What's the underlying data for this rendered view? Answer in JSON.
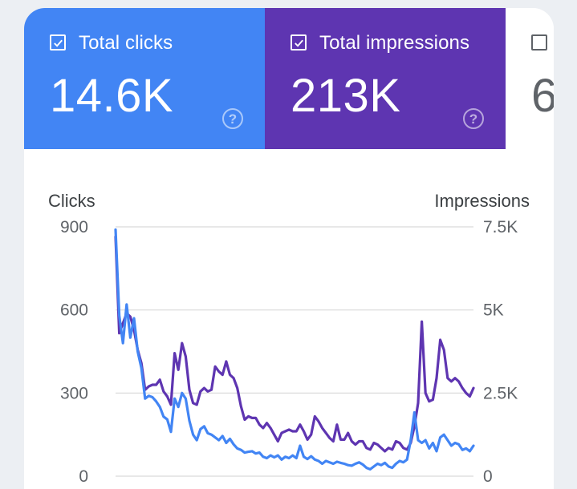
{
  "metrics": {
    "clicks": {
      "label": "Total clicks",
      "value": "14.6K",
      "checked": true,
      "color": "#4285f4"
    },
    "impressions": {
      "label": "Total impressions",
      "value": "213K",
      "checked": true,
      "color": "#5e35b1"
    },
    "third": {
      "label": "",
      "value": "6",
      "checked": false
    }
  },
  "icons": {
    "help": "help-circle-icon",
    "check": "checkmark-icon"
  },
  "chart_data": {
    "type": "line",
    "left_axis": {
      "title": "Clicks",
      "ticks": [
        "900",
        "600",
        "300",
        "0"
      ],
      "range": [
        0,
        900
      ]
    },
    "right_axis": {
      "title": "Impressions",
      "ticks": [
        "7.5K",
        "5K",
        "2.5K",
        "0"
      ],
      "range": [
        0,
        7500
      ]
    },
    "grid": true,
    "series": [
      {
        "axis": "right",
        "color": "#5e35b1",
        "values": [
          7200,
          4300,
          4600,
          4900,
          4800,
          4400,
          3800,
          3400,
          2600,
          2700,
          2750,
          2750,
          2900,
          2550,
          2400,
          2150,
          3700,
          3200,
          4000,
          3600,
          2600,
          2200,
          2150,
          2550,
          2650,
          2550,
          2600,
          3300,
          3150,
          3050,
          3450,
          3050,
          2950,
          2650,
          2100,
          1700,
          1800,
          1750,
          1750,
          1550,
          1450,
          1600,
          1450,
          1250,
          1050,
          1300,
          1350,
          1400,
          1350,
          1350,
          1550,
          1350,
          1100,
          1250,
          1800,
          1650,
          1450,
          1300,
          1150,
          1050,
          1550,
          1100,
          1100,
          1300,
          1050,
          950,
          1050,
          1050,
          850,
          800,
          1000,
          950,
          850,
          750,
          850,
          800,
          1050,
          1000,
          850,
          800,
          1000,
          1500,
          2200,
          4650,
          2500,
          2250,
          2300,
          2950,
          4100,
          3800,
          2950,
          2850,
          2950,
          2850,
          2650,
          2500,
          2400,
          2650
        ]
      },
      {
        "axis": "left",
        "color": "#4285f4",
        "values": [
          890,
          580,
          480,
          620,
          500,
          570,
          450,
          390,
          280,
          290,
          285,
          270,
          250,
          215,
          205,
          160,
          280,
          250,
          300,
          280,
          200,
          150,
          130,
          170,
          180,
          155,
          150,
          140,
          130,
          145,
          120,
          135,
          115,
          100,
          95,
          85,
          88,
          90,
          82,
          85,
          70,
          65,
          75,
          68,
          75,
          60,
          70,
          65,
          75,
          65,
          110,
          70,
          62,
          72,
          60,
          55,
          45,
          55,
          50,
          45,
          52,
          48,
          45,
          40,
          38,
          45,
          50,
          42,
          30,
          25,
          35,
          45,
          40,
          48,
          35,
          30,
          45,
          55,
          50,
          60,
          130,
          230,
          130,
          120,
          130,
          100,
          120,
          90,
          140,
          150,
          130,
          110,
          120,
          115,
          95,
          100,
          90,
          110
        ]
      }
    ]
  }
}
